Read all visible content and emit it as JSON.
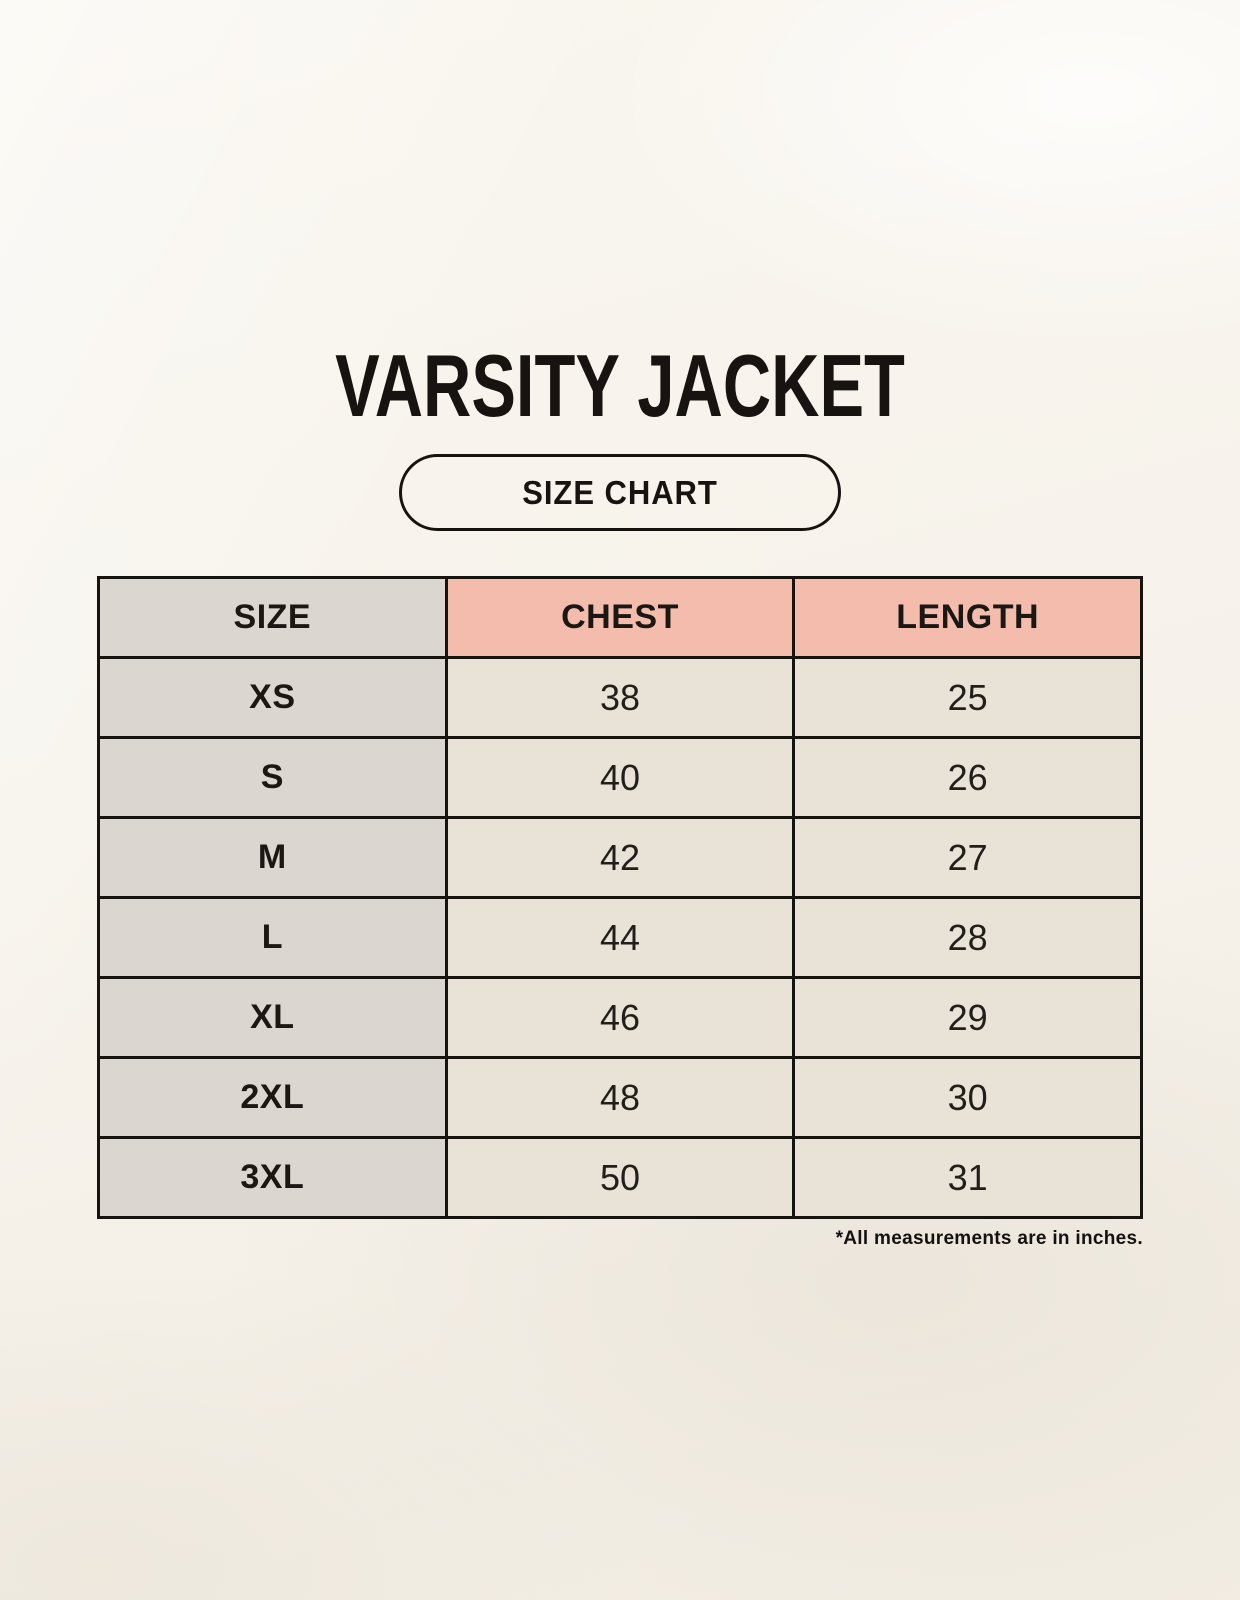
{
  "title": "VARSITY JACKET",
  "badge": {
    "label": "SIZE CHART"
  },
  "table": {
    "headers": {
      "size": "SIZE",
      "chest": "CHEST",
      "length": "LENGTH"
    },
    "rows": [
      {
        "size": "XS",
        "chest": "38",
        "length": "25"
      },
      {
        "size": "S",
        "chest": "40",
        "length": "26"
      },
      {
        "size": "M",
        "chest": "42",
        "length": "27"
      },
      {
        "size": "L",
        "chest": "44",
        "length": "28"
      },
      {
        "size": "XL",
        "chest": "46",
        "length": "29"
      },
      {
        "size": "2XL",
        "chest": "48",
        "length": "30"
      },
      {
        "size": "3XL",
        "chest": "50",
        "length": "31"
      }
    ]
  },
  "footnote": "*All measurements are in inches.",
  "colors": {
    "background": "#f7f3ec",
    "accent_header": "#f3bcac",
    "size_column": "#dcd6d0",
    "data_cell": "#e9e3d7",
    "border": "#17130f",
    "text": "#1b1713"
  },
  "chart_data": {
    "type": "table",
    "title": "VARSITY JACKET",
    "subtitle": "SIZE CHART",
    "columns": [
      "SIZE",
      "CHEST",
      "LENGTH"
    ],
    "rows": [
      [
        "XS",
        38,
        25
      ],
      [
        "S",
        40,
        26
      ],
      [
        "M",
        42,
        27
      ],
      [
        "L",
        44,
        28
      ],
      [
        "XL",
        46,
        29
      ],
      [
        "2XL",
        48,
        30
      ],
      [
        "3XL",
        50,
        31
      ]
    ],
    "note": "*All measurements are in inches.",
    "units": "inches"
  }
}
